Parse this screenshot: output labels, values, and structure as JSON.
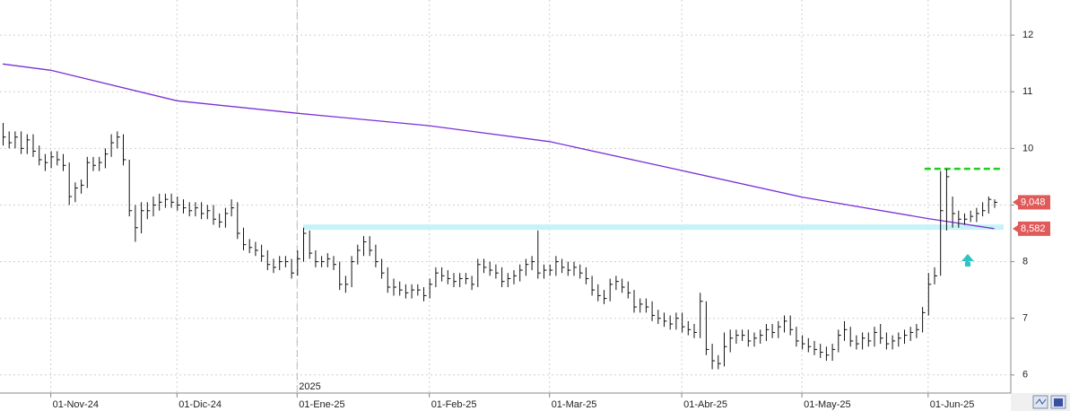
{
  "chart_data": {
    "type": "hlc",
    "categories": [
      null,
      null,
      null,
      null,
      null,
      null,
      null,
      null,
      "01-Nov-24",
      null,
      null,
      null,
      null,
      null,
      null,
      null,
      null,
      null,
      null,
      null,
      null,
      null,
      null,
      null,
      null,
      null,
      null,
      null,
      null,
      "01-Dic-24",
      null,
      null,
      null,
      null,
      null,
      null,
      null,
      null,
      null,
      null,
      null,
      null,
      null,
      null,
      null,
      null,
      null,
      null,
      null,
      "01-Ene-25",
      null,
      null,
      null,
      null,
      null,
      null,
      null,
      null,
      null,
      null,
      null,
      null,
      null,
      null,
      null,
      null,
      null,
      null,
      null,
      null,
      null,
      "01-Feb-25",
      null,
      null,
      null,
      null,
      null,
      null,
      null,
      null,
      null,
      null,
      null,
      null,
      null,
      null,
      null,
      null,
      null,
      null,
      null,
      "01-Mar-25",
      null,
      null,
      null,
      null,
      null,
      null,
      null,
      null,
      null,
      null,
      null,
      null,
      null,
      null,
      null,
      null,
      null,
      null,
      null,
      null,
      null,
      "01-Abr-25",
      null,
      null,
      null,
      null,
      null,
      null,
      null,
      null,
      null,
      null,
      null,
      null,
      null,
      null,
      null,
      null,
      null,
      null,
      null,
      "01-May-25",
      null,
      null,
      null,
      null,
      null,
      null,
      null,
      null,
      null,
      null,
      null,
      null,
      null,
      null,
      null,
      null,
      null,
      null,
      null,
      null,
      "01-Jun-25",
      null,
      null,
      null,
      null,
      null,
      null,
      null,
      null,
      null,
      null,
      null
    ],
    "high": [
      10.45,
      10.3,
      10.3,
      10.3,
      10.25,
      10.25,
      10.05,
      9.9,
      9.95,
      9.95,
      9.9,
      9.75,
      9.4,
      9.45,
      9.85,
      9.85,
      9.85,
      10.0,
      10.25,
      10.3,
      10.25,
      9.8,
      9.0,
      9.05,
      9.05,
      9.15,
      9.2,
      9.2,
      9.2,
      9.15,
      9.1,
      9.05,
      9.05,
      9.05,
      9.0,
      9.0,
      8.85,
      8.95,
      9.1,
      9.05,
      8.6,
      8.4,
      8.35,
      8.3,
      8.2,
      8.05,
      8.1,
      8.1,
      8.05,
      8.2,
      8.6,
      8.55,
      8.2,
      8.1,
      8.15,
      8.1,
      8.0,
      7.75,
      8.1,
      8.3,
      8.45,
      8.45,
      8.3,
      8.05,
      7.9,
      7.7,
      7.65,
      7.6,
      7.6,
      7.6,
      7.55,
      7.7,
      7.9,
      7.9,
      7.85,
      7.8,
      7.8,
      7.8,
      7.75,
      8.05,
      8.05,
      8.0,
      7.95,
      7.9,
      7.8,
      7.85,
      7.95,
      8.05,
      8.1,
      8.55,
      7.95,
      7.95,
      8.1,
      8.05,
      8.0,
      8.0,
      7.95,
      7.9,
      7.75,
      7.6,
      7.5,
      7.7,
      7.75,
      7.7,
      7.65,
      7.5,
      7.35,
      7.35,
      7.3,
      7.15,
      7.1,
      7.05,
      7.1,
      7.1,
      6.95,
      6.9,
      7.45,
      7.3,
      6.55,
      6.35,
      6.75,
      6.8,
      6.8,
      6.8,
      6.8,
      6.75,
      6.8,
      6.9,
      6.9,
      6.95,
      7.05,
      7.05,
      6.85,
      6.7,
      6.65,
      6.6,
      6.55,
      6.5,
      6.55,
      6.8,
      6.95,
      6.85,
      6.7,
      6.75,
      6.75,
      6.85,
      6.9,
      6.75,
      6.7,
      6.75,
      6.8,
      6.85,
      6.9,
      7.2,
      7.8,
      7.9,
      9.6,
      9.64,
      9.15,
      8.9,
      8.85,
      8.9,
      8.95,
      9.05,
      9.15,
      9.1
    ],
    "low": [
      10.05,
      10.0,
      10.0,
      9.9,
      9.9,
      9.85,
      9.7,
      9.6,
      9.65,
      9.7,
      9.6,
      9.0,
      9.05,
      9.2,
      9.3,
      9.6,
      9.6,
      9.65,
      9.85,
      10.0,
      9.7,
      8.8,
      8.35,
      8.5,
      8.75,
      8.8,
      8.9,
      8.95,
      8.95,
      8.9,
      8.85,
      8.8,
      8.8,
      8.75,
      8.75,
      8.65,
      8.6,
      8.6,
      8.8,
      8.4,
      8.2,
      8.15,
      8.1,
      8.0,
      7.85,
      7.8,
      7.85,
      7.9,
      7.7,
      7.75,
      8.0,
      8.05,
      7.9,
      7.9,
      7.9,
      7.85,
      7.5,
      7.45,
      7.55,
      7.95,
      8.1,
      8.1,
      7.9,
      7.7,
      7.45,
      7.4,
      7.4,
      7.35,
      7.35,
      7.4,
      7.3,
      7.35,
      7.55,
      7.65,
      7.6,
      7.55,
      7.55,
      7.6,
      7.5,
      7.55,
      7.8,
      7.75,
      7.7,
      7.55,
      7.55,
      7.6,
      7.65,
      7.75,
      7.85,
      7.7,
      7.7,
      7.75,
      7.75,
      7.8,
      7.75,
      7.75,
      7.7,
      7.6,
      7.4,
      7.3,
      7.25,
      7.3,
      7.5,
      7.45,
      7.35,
      7.1,
      7.1,
      7.1,
      6.95,
      6.9,
      6.85,
      6.8,
      6.8,
      6.75,
      6.7,
      6.65,
      6.65,
      6.35,
      6.1,
      6.1,
      6.15,
      6.4,
      6.55,
      6.6,
      6.5,
      6.5,
      6.55,
      6.6,
      6.65,
      6.65,
      6.75,
      6.7,
      6.5,
      6.45,
      6.4,
      6.35,
      6.3,
      6.25,
      6.25,
      6.4,
      6.6,
      6.5,
      6.45,
      6.45,
      6.5,
      6.5,
      6.55,
      6.45,
      6.45,
      6.5,
      6.55,
      6.6,
      6.65,
      6.75,
      7.05,
      7.6,
      7.75,
      8.55,
      8.6,
      8.6,
      8.65,
      8.7,
      8.7,
      8.8,
      8.85,
      8.95
    ],
    "close": [
      10.2,
      10.1,
      10.2,
      10.0,
      10.15,
      9.95,
      9.8,
      9.75,
      9.85,
      9.8,
      9.7,
      9.15,
      9.3,
      9.35,
      9.75,
      9.7,
      9.75,
      9.9,
      10.1,
      10.2,
      9.8,
      8.9,
      8.6,
      8.9,
      8.9,
      9.0,
      9.05,
      9.1,
      9.05,
      9.0,
      8.95,
      8.9,
      8.95,
      8.85,
      8.9,
      8.75,
      8.7,
      8.85,
      8.95,
      8.5,
      8.3,
      8.25,
      8.2,
      8.1,
      7.95,
      7.9,
      8.0,
      8.0,
      7.8,
      8.05,
      8.5,
      8.15,
      8.0,
      8.0,
      8.05,
      7.95,
      7.6,
      7.6,
      8.0,
      8.2,
      8.35,
      8.2,
      8.0,
      7.8,
      7.55,
      7.55,
      7.5,
      7.45,
      7.5,
      7.5,
      7.4,
      7.6,
      7.8,
      7.75,
      7.7,
      7.65,
      7.7,
      7.7,
      7.6,
      7.95,
      7.9,
      7.85,
      7.8,
      7.65,
      7.7,
      7.75,
      7.85,
      7.95,
      8.0,
      7.8,
      7.85,
      7.85,
      8.0,
      7.9,
      7.85,
      7.9,
      7.8,
      7.7,
      7.5,
      7.4,
      7.35,
      7.6,
      7.65,
      7.55,
      7.45,
      7.2,
      7.25,
      7.2,
      7.05,
      7.0,
      6.95,
      6.9,
      7.0,
      6.85,
      6.8,
      6.75,
      7.3,
      6.45,
      6.25,
      6.2,
      6.5,
      6.65,
      6.7,
      6.7,
      6.6,
      6.65,
      6.7,
      6.8,
      6.75,
      6.85,
      6.95,
      6.8,
      6.6,
      6.55,
      6.5,
      6.45,
      6.4,
      6.35,
      6.45,
      6.7,
      6.8,
      6.6,
      6.55,
      6.65,
      6.6,
      6.75,
      6.65,
      6.55,
      6.6,
      6.65,
      6.7,
      6.75,
      6.8,
      7.1,
      7.6,
      7.75,
      8.9,
      9.5,
      8.85,
      8.75,
      8.75,
      8.8,
      8.85,
      8.9,
      9.1,
      9.048
    ],
    "bar_color": "#111111",
    "ma": {
      "x": [
        0,
        8,
        29,
        49,
        71,
        91,
        113,
        133,
        154,
        165
      ],
      "values": [
        11.49,
        11.38,
        10.84,
        10.62,
        10.4,
        10.12,
        9.61,
        9.14,
        8.76,
        8.582
      ],
      "color": "#7a2fd6"
    },
    "price_tag": {
      "value": 9.048,
      "label": "9,048",
      "color": "#e05a5a"
    },
    "ma_tag": {
      "value": 8.582,
      "label": "8,582",
      "color": "#e05a5a"
    },
    "support_band": {
      "value": 8.61,
      "from": 50,
      "color": "#c6f3f7"
    },
    "resistance_line": {
      "value": 9.64,
      "from": 154,
      "color": "#22cc22"
    },
    "year_marker": {
      "index": 49,
      "label": "2025"
    },
    "ylim": [
      5.68,
      12.62
    ],
    "yticks": [
      6,
      7,
      8,
      9,
      10,
      11,
      12
    ],
    "grid": true
  }
}
